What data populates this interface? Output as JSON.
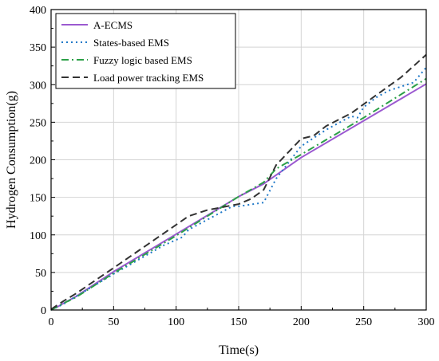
{
  "chart_data": {
    "type": "line",
    "xlabel": "Time(s)",
    "ylabel": "Hydrogen Consumption(g)",
    "xlim": [
      0,
      300
    ],
    "ylim": [
      0,
      400
    ],
    "xticks": [
      0,
      50,
      100,
      150,
      200,
      250,
      300
    ],
    "yticks": [
      0,
      50,
      100,
      150,
      200,
      250,
      300,
      350,
      400
    ],
    "grid": true,
    "legend_position": "top-left",
    "series": [
      {
        "name": "A-ECMS",
        "color": "#9b59d0",
        "dash": "solid",
        "x": [
          0,
          5,
          10,
          20,
          50,
          100,
          150,
          170,
          200,
          250,
          300
        ],
        "y": [
          1,
          4,
          9,
          18,
          51,
          101,
          151,
          168,
          203,
          252,
          301
        ]
      },
      {
        "name": "States-based EMS",
        "color": "#1f78c8",
        "dash": "dotted",
        "x": [
          0,
          10,
          20,
          50,
          90,
          105,
          110,
          145,
          150,
          170,
          180,
          200,
          220,
          240,
          245,
          250,
          260,
          270,
          290,
          300
        ],
        "y": [
          0,
          8,
          18,
          48,
          86,
          97,
          107,
          138,
          138,
          143,
          175,
          218,
          240,
          258,
          256,
          270,
          283,
          292,
          303,
          323
        ]
      },
      {
        "name": "Fuzzy logic based EMS",
        "color": "#2ca048",
        "dash": "dashdot",
        "x": [
          0,
          10,
          20,
          50,
          100,
          150,
          170,
          180,
          200,
          250,
          300
        ],
        "y": [
          0,
          9,
          17,
          49,
          99,
          151,
          170,
          188,
          207,
          256,
          308
        ]
      },
      {
        "name": "Load power tracking EMS",
        "color": "#333333",
        "dash": "dashed",
        "x": [
          0,
          10,
          20,
          50,
          90,
          110,
          125,
          150,
          160,
          170,
          180,
          200,
          210,
          220,
          240,
          260,
          280,
          300
        ],
        "y": [
          1,
          12,
          22,
          56,
          102,
          125,
          133,
          141,
          148,
          160,
          193,
          228,
          232,
          245,
          262,
          286,
          310,
          340
        ]
      }
    ]
  }
}
